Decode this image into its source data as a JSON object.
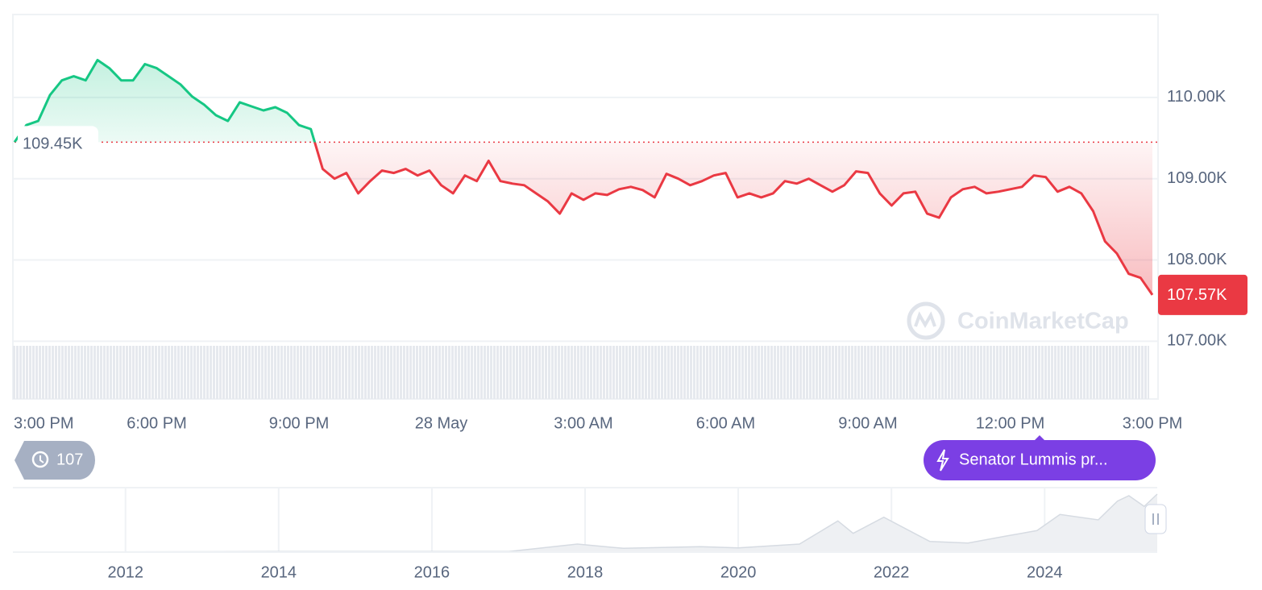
{
  "chart_data": {
    "type": "line",
    "categories": [
      "3:00 PM",
      null,
      null,
      null,
      null,
      null,
      null,
      null,
      null,
      null,
      null,
      null,
      "6:00 PM",
      null,
      null,
      null,
      null,
      null,
      null,
      null,
      null,
      null,
      null,
      null,
      "9:00 PM",
      null,
      null,
      null,
      null,
      null,
      null,
      null,
      null,
      null,
      null,
      null,
      "28 May",
      null,
      null,
      null,
      null,
      null,
      null,
      null,
      null,
      null,
      null,
      null,
      "3:00 AM",
      null,
      null,
      null,
      null,
      null,
      null,
      null,
      null,
      null,
      null,
      null,
      "6:00 AM",
      null,
      null,
      null,
      null,
      null,
      null,
      null,
      null,
      null,
      null,
      null,
      "9:00 AM",
      null,
      null,
      null,
      null,
      null,
      null,
      null,
      null,
      null,
      null,
      null,
      "12:00 PM",
      null,
      null,
      null,
      null,
      null,
      null,
      null,
      null,
      null,
      null,
      null,
      "3:00 PM"
    ],
    "values": [
      109.45,
      109.66,
      109.71,
      110.03,
      110.21,
      110.26,
      110.21,
      110.46,
      110.36,
      110.21,
      110.21,
      110.41,
      110.36,
      110.26,
      110.16,
      110.01,
      109.91,
      109.78,
      109.71,
      109.94,
      109.89,
      109.84,
      109.88,
      109.81,
      109.66,
      109.61,
      109.12,
      109.0,
      109.07,
      108.82,
      108.97,
      109.1,
      109.07,
      109.12,
      109.04,
      109.1,
      108.92,
      108.82,
      109.04,
      108.97,
      109.22,
      108.97,
      108.94,
      108.92,
      108.82,
      108.72,
      108.57,
      108.82,
      108.74,
      108.82,
      108.8,
      108.87,
      108.9,
      108.86,
      108.77,
      109.06,
      109.0,
      108.92,
      108.97,
      109.04,
      109.07,
      108.77,
      108.82,
      108.77,
      108.82,
      108.97,
      108.94,
      109.0,
      108.92,
      108.84,
      108.92,
      109.09,
      109.07,
      108.82,
      108.67,
      108.82,
      108.84,
      108.57,
      108.52,
      108.77,
      108.87,
      108.9,
      108.82,
      108.84,
      108.87,
      108.9,
      109.04,
      109.02,
      108.84,
      108.9,
      108.82,
      108.6,
      108.23,
      108.08,
      107.83,
      107.78,
      107.57
    ],
    "up_color": "#16c784",
    "down_color": "#ea3943",
    "ylim": [
      106.29,
      111.02
    ],
    "yticks": [
      {
        "value": 107,
        "label": "107.00K"
      },
      {
        "value": 108,
        "label": "108.00K"
      },
      {
        "value": 109,
        "label": "109.00K"
      },
      {
        "value": 110,
        "label": "110.00K"
      }
    ],
    "grid": true,
    "baseline": {
      "value": 109.45,
      "label": "109.45K"
    },
    "last_price": {
      "value": 107.57,
      "label": "107.57K"
    },
    "watermark": "CoinMarketCap"
  },
  "navigator": {
    "type": "area",
    "color": "#d6dbe2",
    "x": [
      2010.53,
      2013.9,
      2017.0,
      2017.9,
      2018.5,
      2019.5,
      2020.0,
      2020.8,
      2021.3,
      2021.5,
      2021.9,
      2022.5,
      2023.0,
      2023.5,
      2023.9,
      2024.2,
      2024.7,
      2024.95,
      2025.1,
      2025.3,
      2025.47
    ],
    "values": [
      0,
      1,
      1,
      15,
      7,
      10,
      8,
      15,
      58,
      35,
      65,
      20,
      17,
      30,
      40,
      70,
      60,
      95,
      105,
      85,
      108
    ],
    "xlim": [
      2010.53,
      2025.47
    ],
    "ylim": [
      0,
      120
    ],
    "xticks": [
      2012,
      2014,
      2016,
      2018,
      2020,
      2022,
      2024
    ]
  },
  "widgets": {
    "history_count": "107",
    "news": "Senator Lummis pr..."
  }
}
